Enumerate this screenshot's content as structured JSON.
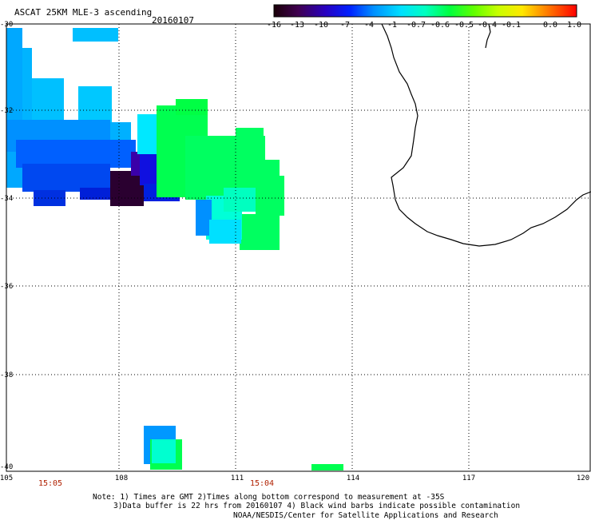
{
  "title": "ASCAT 25KM MLE-3 ascending",
  "date": "20160107",
  "colorbar": {
    "labels": [
      "-16",
      "-13",
      "-10",
      "-7",
      "-4",
      "-1",
      "-0.7",
      "-0.6",
      "-0.5",
      "-0.4",
      "-0.1",
      "0.0",
      "1.0"
    ],
    "colors": [
      "#2a0010",
      "#400060",
      "#3000b0",
      "#0030ff",
      "#0090ff",
      "#00d8ff",
      "#00ffb8",
      "#00ff50",
      "#40ff00",
      "#b8ff00",
      "#ffe000",
      "#ff8000",
      "#ff1000"
    ]
  },
  "y_axis": {
    "labels": [
      "-30",
      "-32",
      "-34",
      "-36",
      "-38",
      "-40"
    ]
  },
  "x_axis": {
    "labels": [
      "105",
      "108",
      "111",
      "114",
      "117",
      "120"
    ]
  },
  "times": [
    "15:05",
    "15:04"
  ],
  "notes": [
    "Note: 1) Times are GMT 2)Times along bottom correspond to measurement at -35S",
    "3)Data buffer is 22 hrs from 20160107 4) Black wind barbs indicate possible contamination"
  ],
  "footer": "NOAA/NESDIS/Center for Satellite Applications and Research"
}
